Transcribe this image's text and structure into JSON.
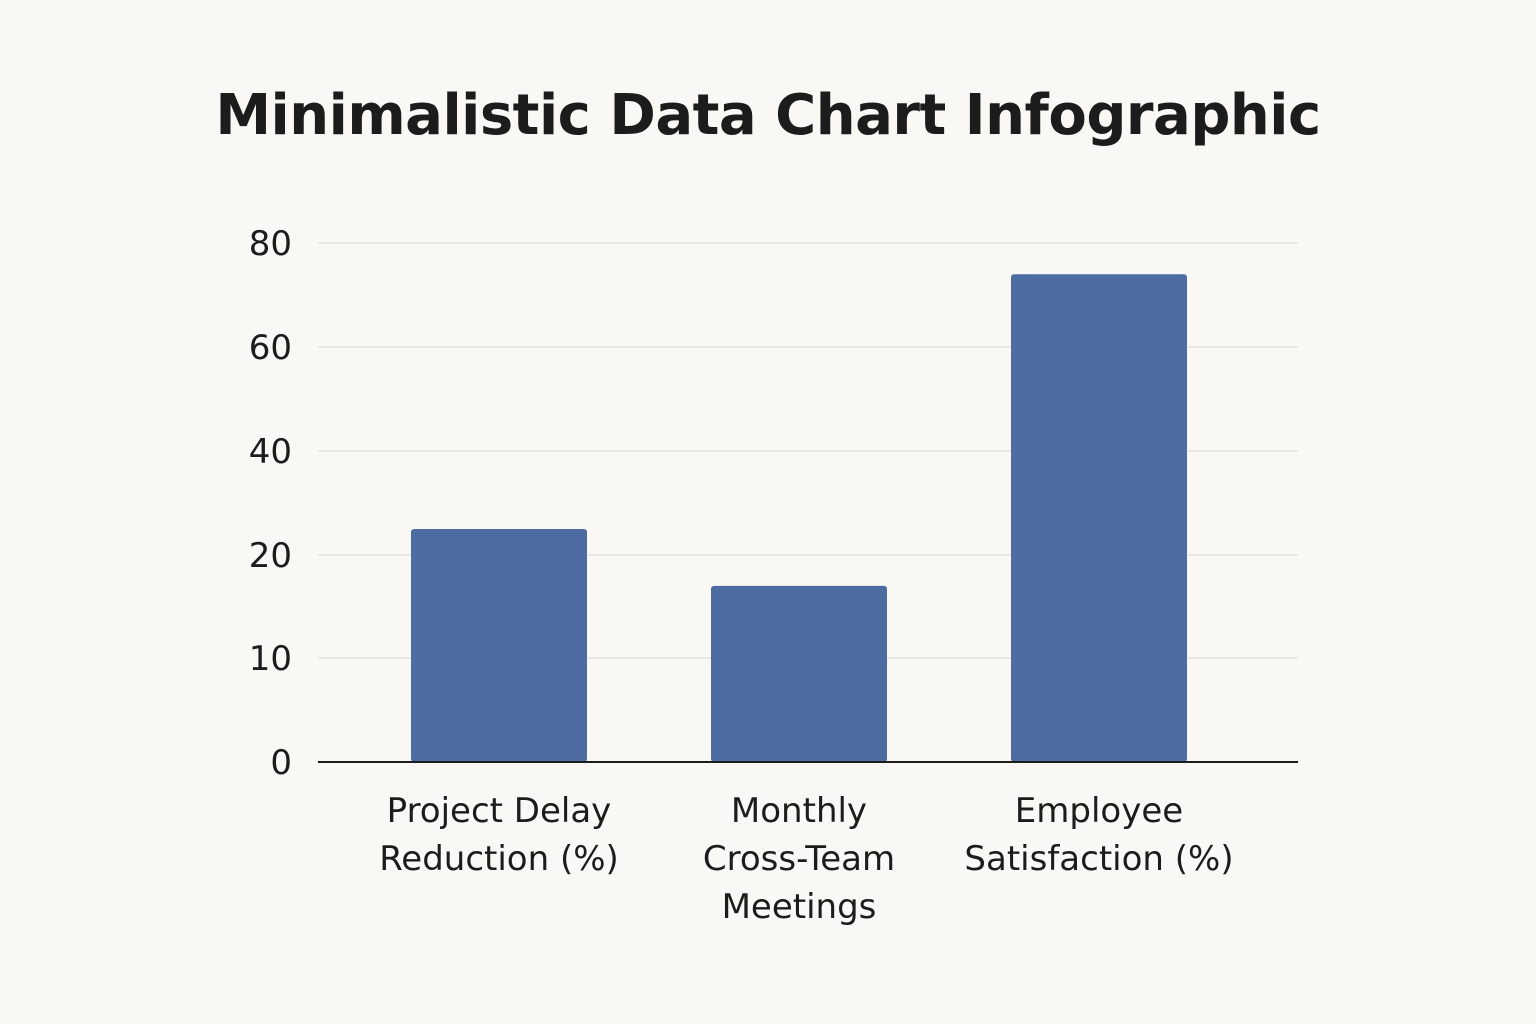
{
  "chart_data": {
    "type": "bar",
    "title": "Minimalistic Data Chart Infographic",
    "xlabel": "",
    "ylabel": "",
    "categories": [
      [
        "Project Delay",
        "Reduction (%)"
      ],
      [
        "Monthly",
        "Cross-Team",
        "Meetings"
      ],
      [
        "Employee",
        "Satisfaction (%)"
      ]
    ],
    "values": [
      25,
      17,
      74
    ],
    "yticks": [
      0,
      10,
      20,
      40,
      60,
      80
    ],
    "grid": true,
    "legend": "none",
    "colors": {
      "bar": "#4d6ca2",
      "grid": "#e4e3df",
      "axis": "#1c1c1c",
      "background": "#f9f8f4"
    }
  }
}
